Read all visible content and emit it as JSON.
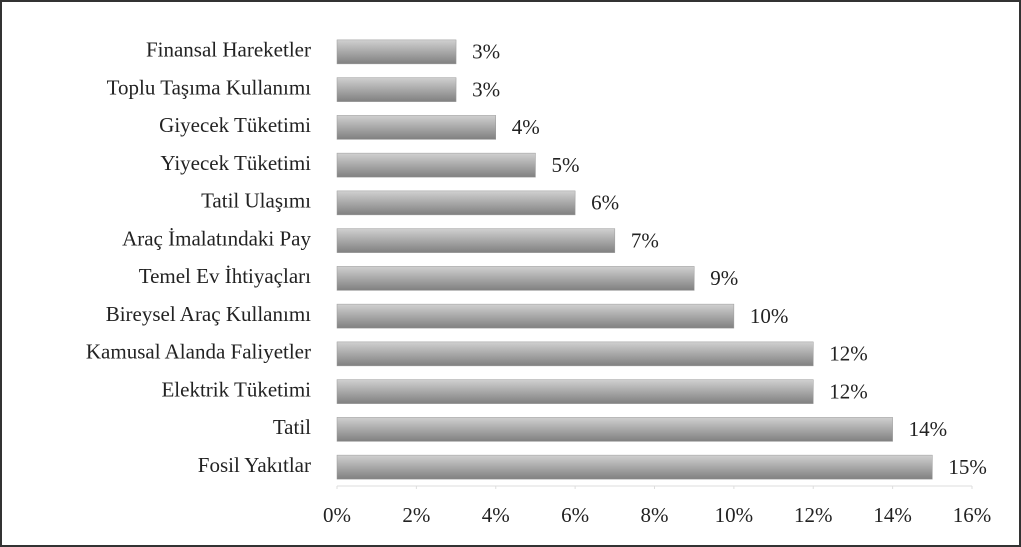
{
  "chart_data": {
    "type": "bar",
    "orientation": "horizontal",
    "categories": [
      "Finansal Hareketler",
      "Toplu Taşıma Kullanımı",
      "Giyecek Tüketimi",
      "Yiyecek Tüketimi",
      "Tatil Ulaşımı",
      "Araç İmalatındaki Pay",
      "Temel Ev İhtiyaçları",
      "Bireysel Araç Kullanımı",
      "Kamusal Alanda Faliyetler",
      "Elektrik Tüketimi",
      "Tatil",
      "Fosil Yakıtlar"
    ],
    "values": [
      3,
      3,
      4,
      5,
      6,
      7,
      9,
      10,
      12,
      12,
      14,
      15
    ],
    "value_labels": [
      "3%",
      "3%",
      "4%",
      "5%",
      "6%",
      "7%",
      "9%",
      "10%",
      "12%",
      "12%",
      "14%",
      "15%"
    ],
    "color": "#9a9a9a",
    "xlim": [
      0,
      16
    ],
    "xticks": [
      {
        "value": 0,
        "label": "0%"
      },
      {
        "value": 2,
        "label": "2%"
      },
      {
        "value": 4,
        "label": "4%"
      },
      {
        "value": 6,
        "label": "6%"
      },
      {
        "value": 8,
        "label": "8%"
      },
      {
        "value": 10,
        "label": "10%"
      },
      {
        "value": 12,
        "label": "12%"
      },
      {
        "value": 14,
        "label": "14%"
      },
      {
        "value": 16,
        "label": "16%"
      }
    ],
    "grid": false
  }
}
